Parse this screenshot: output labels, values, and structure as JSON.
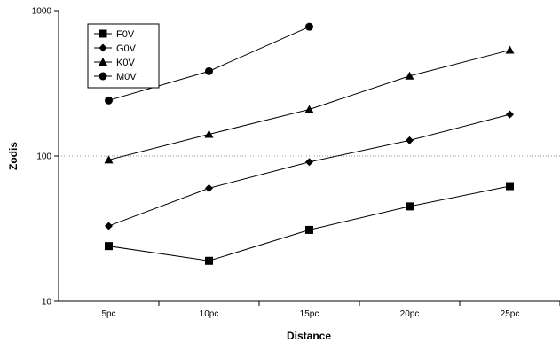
{
  "chart_data": {
    "type": "line",
    "title": "",
    "xlabel": "Distance",
    "ylabel": "Zodis",
    "y_scale": "log",
    "ylim": [
      10,
      1000
    ],
    "y_ticks": [
      {
        "value": 10,
        "label": "10"
      },
      {
        "value": 100,
        "label": "100"
      },
      {
        "value": 1000,
        "label": "1000"
      }
    ],
    "categories": [
      "5pc",
      "10pc",
      "15pc",
      "20pc",
      "25pc"
    ],
    "grid": {
      "horizontal_at": [
        100
      ],
      "style": "dotted"
    },
    "legend_position": "top-left",
    "series": [
      {
        "name": "F0V",
        "marker": "square",
        "values": [
          24,
          19,
          31,
          45,
          62
        ]
      },
      {
        "name": "G0V",
        "marker": "diamond",
        "values": [
          33,
          60,
          91,
          128,
          193
        ]
      },
      {
        "name": "K0V",
        "marker": "triangle",
        "values": [
          94,
          141,
          209,
          355,
          535
        ]
      },
      {
        "name": "M0V",
        "marker": "circle",
        "values": [
          241,
          383,
          775,
          null,
          null
        ]
      }
    ]
  }
}
